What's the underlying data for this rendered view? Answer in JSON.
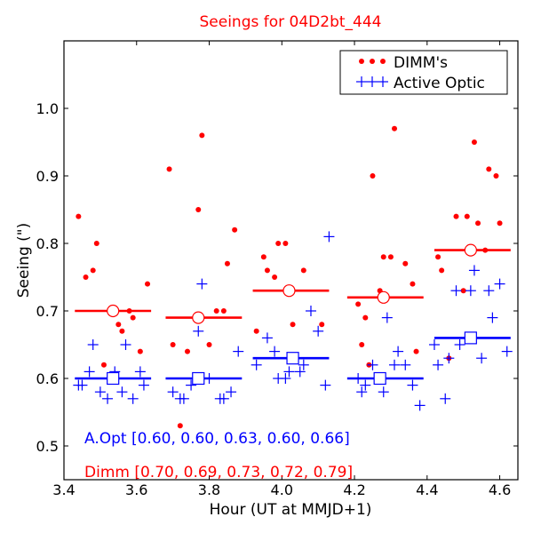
{
  "chart_data": {
    "type": "scatter",
    "title": "Seeings for 04D2bt_444",
    "xlabel": "Hour (UT at MMJD+1)",
    "ylabel": "Seeing (\")",
    "xlim": [
      3.4,
      4.65
    ],
    "ylim": [
      0.45,
      1.1
    ],
    "xticks": [
      "3.4",
      "3.6",
      "3.8",
      "4.0",
      "4.2",
      "4.4",
      "4.6"
    ],
    "yticks": [
      "0.5",
      "0.6",
      "0.7",
      "0.8",
      "0.9",
      "1.0"
    ],
    "legend": {
      "position": "top-right",
      "entries": [
        "DIMM's",
        "Active Optic"
      ]
    },
    "colors": {
      "dimm": "#ff0000",
      "aopt": "#0000ff",
      "title": "#ff0000",
      "overlap": "#7f007f"
    },
    "annotations": {
      "aopt": "A.Opt [0.60, 0.60, 0.63, 0.60, 0.66]",
      "dimm": "Dimm [0.70, 0.69, 0.73, 0.72, 0.79]"
    },
    "series": [
      {
        "name": "DIMM's",
        "marker": "dot",
        "points": [
          [
            3.44,
            0.84
          ],
          [
            3.46,
            0.75
          ],
          [
            3.48,
            0.76
          ],
          [
            3.49,
            0.8
          ],
          [
            3.51,
            0.62
          ],
          [
            3.55,
            0.68
          ],
          [
            3.56,
            0.67
          ],
          [
            3.58,
            0.7
          ],
          [
            3.59,
            0.69
          ],
          [
            3.61,
            0.64
          ],
          [
            3.63,
            0.74
          ],
          [
            3.69,
            0.91
          ],
          [
            3.7,
            0.65
          ],
          [
            3.72,
            0.53
          ],
          [
            3.74,
            0.64
          ],
          [
            3.77,
            0.85
          ],
          [
            3.78,
            0.96
          ],
          [
            3.8,
            0.65
          ],
          [
            3.82,
            0.7
          ],
          [
            3.84,
            0.7
          ],
          [
            3.85,
            0.77
          ],
          [
            3.87,
            0.82
          ],
          [
            3.93,
            0.67
          ],
          [
            3.95,
            0.78
          ],
          [
            3.96,
            0.76
          ],
          [
            3.98,
            0.75
          ],
          [
            3.99,
            0.8
          ],
          [
            4.01,
            0.8
          ],
          [
            4.03,
            0.68
          ],
          [
            4.06,
            0.76
          ],
          [
            4.11,
            0.68
          ],
          [
            4.21,
            0.71
          ],
          [
            4.22,
            0.65
          ],
          [
            4.23,
            0.69
          ],
          [
            4.24,
            0.62
          ],
          [
            4.25,
            0.9
          ],
          [
            4.27,
            0.73
          ],
          [
            4.28,
            0.78
          ],
          [
            4.3,
            0.78
          ],
          [
            4.31,
            0.97
          ],
          [
            4.34,
            0.77
          ],
          [
            4.36,
            0.74
          ],
          [
            4.37,
            0.64
          ],
          [
            4.43,
            0.78
          ],
          [
            4.44,
            0.76
          ],
          [
            4.46,
            0.63
          ],
          [
            4.48,
            0.84
          ],
          [
            4.5,
            0.73
          ],
          [
            4.51,
            0.84
          ],
          [
            4.53,
            0.95
          ],
          [
            4.54,
            0.83
          ],
          [
            4.56,
            0.79
          ],
          [
            4.57,
            0.91
          ],
          [
            4.59,
            0.9
          ],
          [
            4.6,
            0.83
          ]
        ]
      },
      {
        "name": "Active Optic",
        "marker": "plus",
        "points": [
          [
            3.44,
            0.59
          ],
          [
            3.45,
            0.59
          ],
          [
            3.47,
            0.61
          ],
          [
            3.48,
            0.65
          ],
          [
            3.5,
            0.58
          ],
          [
            3.52,
            0.57
          ],
          [
            3.54,
            0.61
          ],
          [
            3.56,
            0.58
          ],
          [
            3.57,
            0.65
          ],
          [
            3.59,
            0.57
          ],
          [
            3.61,
            0.61
          ],
          [
            3.62,
            0.59
          ],
          [
            3.7,
            0.58
          ],
          [
            3.72,
            0.57
          ],
          [
            3.73,
            0.57
          ],
          [
            3.75,
            0.59
          ],
          [
            3.77,
            0.67
          ],
          [
            3.78,
            0.74
          ],
          [
            3.8,
            0.6
          ],
          [
            3.83,
            0.57
          ],
          [
            3.84,
            0.57
          ],
          [
            3.86,
            0.58
          ],
          [
            3.88,
            0.64
          ],
          [
            3.93,
            0.62
          ],
          [
            3.96,
            0.66
          ],
          [
            3.98,
            0.64
          ],
          [
            3.99,
            0.6
          ],
          [
            4.01,
            0.6
          ],
          [
            4.02,
            0.61
          ],
          [
            4.03,
            0.63
          ],
          [
            4.05,
            0.61
          ],
          [
            4.06,
            0.62
          ],
          [
            4.08,
            0.7
          ],
          [
            4.1,
            0.67
          ],
          [
            4.12,
            0.59
          ],
          [
            4.13,
            0.81
          ],
          [
            4.21,
            0.6
          ],
          [
            4.22,
            0.58
          ],
          [
            4.23,
            0.59
          ],
          [
            4.25,
            0.62
          ],
          [
            4.26,
            0.6
          ],
          [
            4.28,
            0.58
          ],
          [
            4.29,
            0.69
          ],
          [
            4.31,
            0.62
          ],
          [
            4.32,
            0.64
          ],
          [
            4.34,
            0.62
          ],
          [
            4.36,
            0.59
          ],
          [
            4.38,
            0.56
          ],
          [
            4.42,
            0.65
          ],
          [
            4.43,
            0.62
          ],
          [
            4.45,
            0.57
          ],
          [
            4.46,
            0.63
          ],
          [
            4.48,
            0.73
          ],
          [
            4.49,
            0.65
          ],
          [
            4.52,
            0.73
          ],
          [
            4.53,
            0.76
          ],
          [
            4.55,
            0.63
          ],
          [
            4.57,
            0.73
          ],
          [
            4.58,
            0.69
          ],
          [
            4.6,
            0.74
          ],
          [
            4.62,
            0.64
          ]
        ]
      }
    ],
    "averages": {
      "dimm": [
        {
          "x0": 3.43,
          "x1": 3.64,
          "xc": 3.535,
          "y": 0.7
        },
        {
          "x0": 3.68,
          "x1": 3.89,
          "xc": 3.77,
          "y": 0.69
        },
        {
          "x0": 3.92,
          "x1": 4.13,
          "xc": 4.02,
          "y": 0.73
        },
        {
          "x0": 4.18,
          "x1": 4.39,
          "xc": 4.28,
          "y": 0.72
        },
        {
          "x0": 4.42,
          "x1": 4.63,
          "xc": 4.52,
          "y": 0.79
        }
      ],
      "aopt": [
        {
          "x0": 3.43,
          "x1": 3.64,
          "xc": 3.535,
          "y": 0.6
        },
        {
          "x0": 3.68,
          "x1": 3.89,
          "xc": 3.77,
          "y": 0.6
        },
        {
          "x0": 3.92,
          "x1": 4.13,
          "xc": 4.03,
          "y": 0.63
        },
        {
          "x0": 4.18,
          "x1": 4.39,
          "xc": 4.27,
          "y": 0.6
        },
        {
          "x0": 4.42,
          "x1": 4.63,
          "xc": 4.52,
          "y": 0.66
        }
      ]
    }
  }
}
